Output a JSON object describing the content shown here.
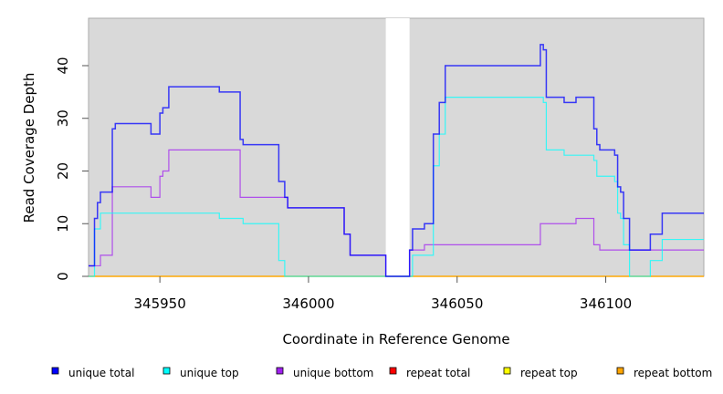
{
  "chart_data": {
    "type": "line",
    "step": true,
    "title": "",
    "xlabel": "Coordinate in Reference Genome",
    "ylabel": "Read Coverage Depth",
    "xlim": [
      345926,
      346133
    ],
    "ylim": [
      0,
      49
    ],
    "xticks": [
      345950,
      346000,
      346050,
      346100
    ],
    "xtick_labels": [
      "345950",
      "346000",
      "346050",
      "346100"
    ],
    "yticks": [
      0,
      10,
      20,
      30,
      40
    ],
    "ytick_labels": [
      "0",
      "10",
      "20",
      "30",
      "40"
    ],
    "background": "#d9d9d9",
    "gap_region": [
      346026,
      346034
    ],
    "legend_position": "bottom",
    "series": [
      {
        "name": "repeat total",
        "color": "#ff0000",
        "steps": [
          [
            345926,
            0
          ]
        ]
      },
      {
        "name": "repeat top",
        "color": "#ffff00",
        "steps": [
          [
            345926,
            0
          ]
        ]
      },
      {
        "name": "repeat bottom",
        "color": "#ffa500",
        "steps": [
          [
            345926,
            0
          ]
        ]
      },
      {
        "name": "unique bottom",
        "color": "#a020f0",
        "steps": [
          [
            345926,
            2
          ],
          [
            345930,
            4
          ],
          [
            345934,
            17
          ],
          [
            345947,
            15
          ],
          [
            345950,
            19
          ],
          [
            345951,
            20
          ],
          [
            345953,
            24
          ],
          [
            345977,
            15
          ],
          [
            345993,
            13
          ],
          [
            346012,
            8
          ],
          [
            346014,
            4
          ],
          [
            346026,
            0
          ],
          [
            346034,
            5
          ],
          [
            346039,
            6
          ],
          [
            346078,
            10
          ],
          [
            346090,
            11
          ],
          [
            346096,
            6
          ],
          [
            346098,
            5
          ]
        ]
      },
      {
        "name": "unique top",
        "color": "#00ffff",
        "steps": [
          [
            345926,
            0
          ],
          [
            345928,
            9
          ],
          [
            345930,
            12
          ],
          [
            345970,
            11
          ],
          [
            345978,
            10
          ],
          [
            345990,
            3
          ],
          [
            345992,
            0
          ],
          [
            346035,
            4
          ],
          [
            346042,
            21
          ],
          [
            346044,
            27
          ],
          [
            346046,
            34
          ],
          [
            346079,
            33
          ],
          [
            346080,
            24
          ],
          [
            346086,
            23
          ],
          [
            346096,
            22
          ],
          [
            346097,
            19
          ],
          [
            346103,
            18
          ],
          [
            346104,
            12
          ],
          [
            346105,
            11
          ],
          [
            346106,
            6
          ],
          [
            346108,
            0
          ],
          [
            346115,
            3
          ],
          [
            346119,
            7
          ]
        ]
      },
      {
        "name": "unique total",
        "color": "#0000ff",
        "steps": [
          [
            345926,
            2
          ],
          [
            345928,
            11
          ],
          [
            345929,
            14
          ],
          [
            345930,
            16
          ],
          [
            345934,
            28
          ],
          [
            345935,
            29
          ],
          [
            345947,
            27
          ],
          [
            345950,
            31
          ],
          [
            345951,
            32
          ],
          [
            345953,
            36
          ],
          [
            345970,
            35
          ],
          [
            345977,
            26
          ],
          [
            345978,
            25
          ],
          [
            345990,
            18
          ],
          [
            345992,
            15
          ],
          [
            345993,
            13
          ],
          [
            346012,
            8
          ],
          [
            346014,
            4
          ],
          [
            346026,
            0
          ],
          [
            346034,
            5
          ],
          [
            346035,
            9
          ],
          [
            346039,
            10
          ],
          [
            346042,
            27
          ],
          [
            346044,
            33
          ],
          [
            346046,
            40
          ],
          [
            346078,
            44
          ],
          [
            346079,
            43
          ],
          [
            346080,
            34
          ],
          [
            346086,
            33
          ],
          [
            346090,
            34
          ],
          [
            346096,
            28
          ],
          [
            346097,
            25
          ],
          [
            346098,
            24
          ],
          [
            346103,
            23
          ],
          [
            346104,
            17
          ],
          [
            346105,
            16
          ],
          [
            346106,
            11
          ],
          [
            346108,
            5
          ],
          [
            346115,
            8
          ],
          [
            346119,
            12
          ]
        ]
      }
    ],
    "legend": [
      {
        "label": "unique total",
        "color": "#0000ff"
      },
      {
        "label": "unique top",
        "color": "#00ffff"
      },
      {
        "label": "unique bottom",
        "color": "#a020f0"
      },
      {
        "label": "repeat total",
        "color": "#ff0000"
      },
      {
        "label": "repeat top",
        "color": "#ffff00"
      },
      {
        "label": "repeat bottom",
        "color": "#ffa500"
      }
    ]
  }
}
